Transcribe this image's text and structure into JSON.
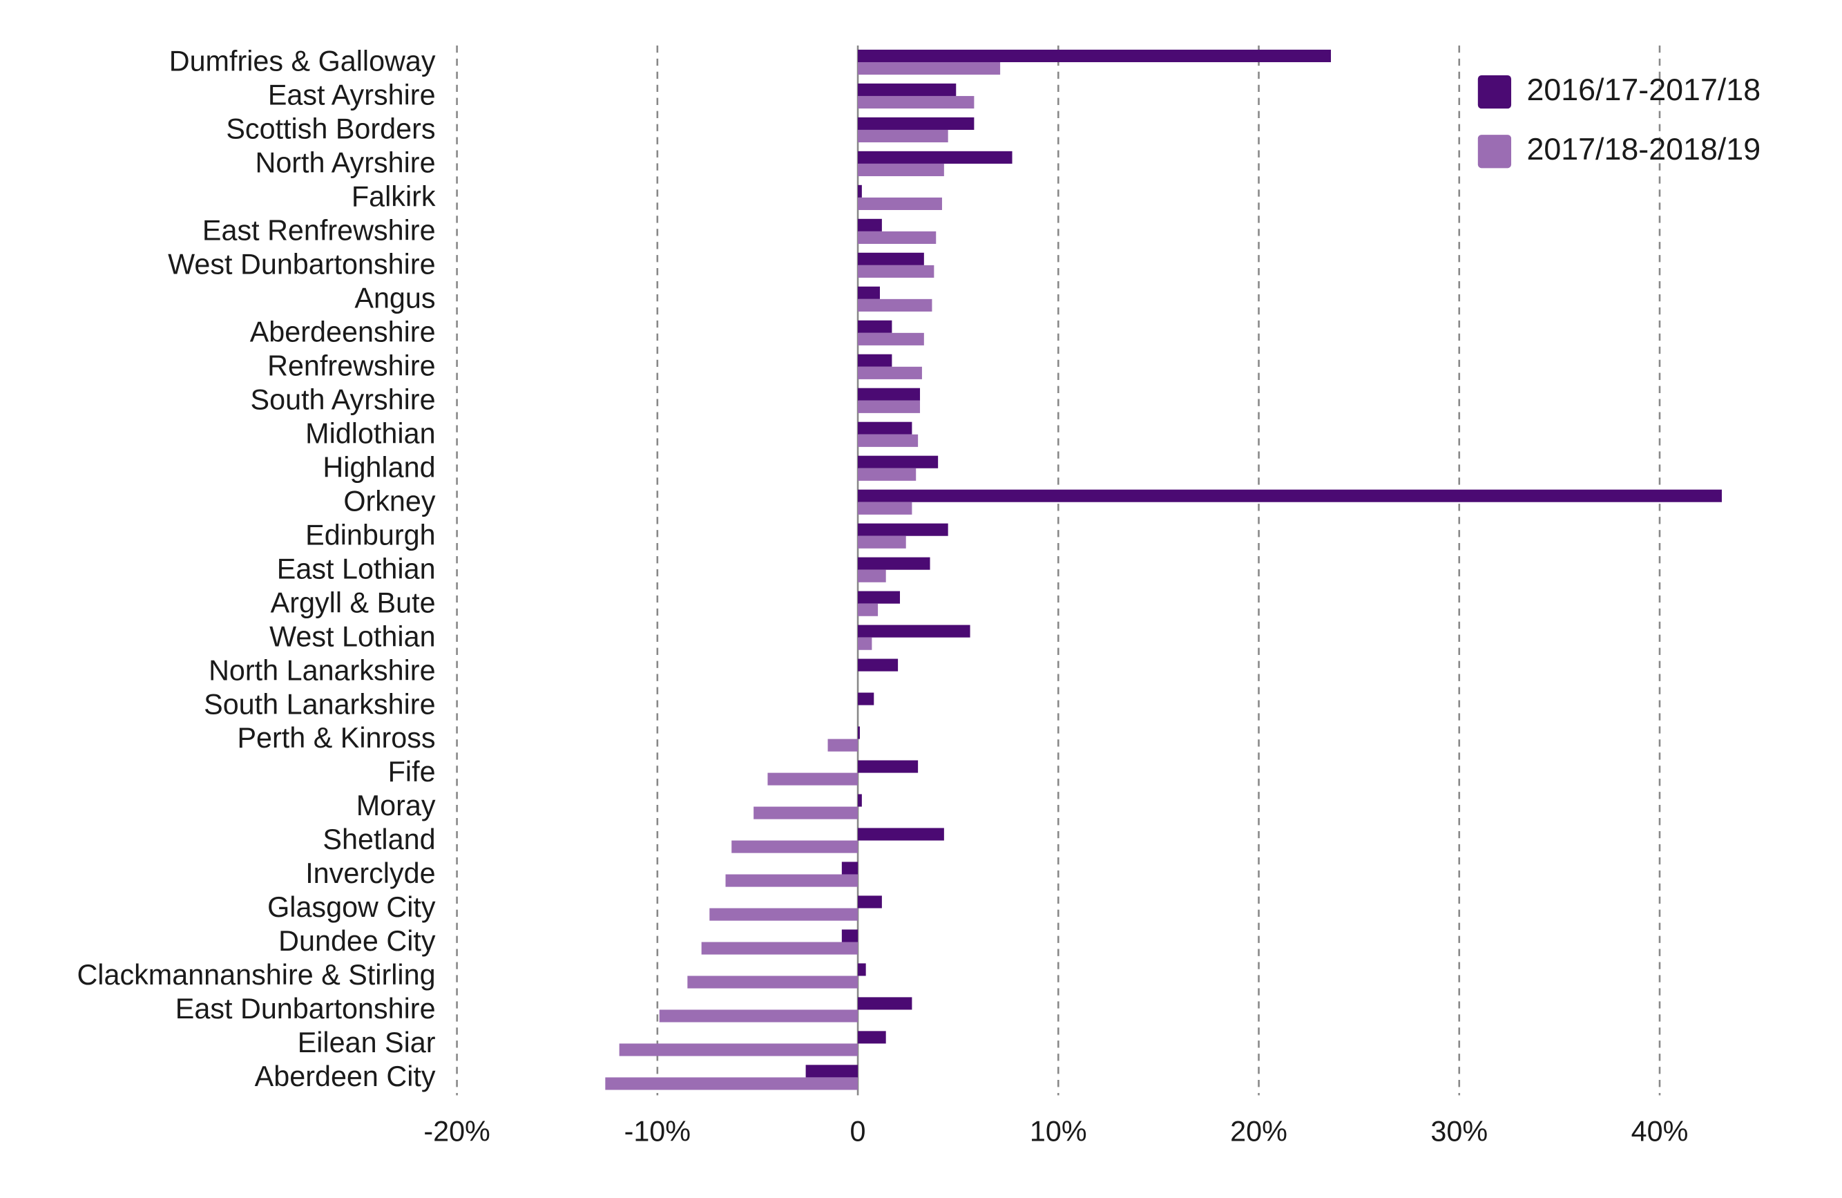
{
  "chart_data": {
    "type": "hbar",
    "categories": [
      "Dumfries & Galloway",
      "East Ayrshire",
      "Scottish Borders",
      "North Ayrshire",
      "Falkirk",
      "East Renfrewshire",
      "West Dunbartonshire",
      "Angus",
      "Aberdeenshire",
      "Renfrewshire",
      "South Ayrshire",
      "Midlothian",
      "Highland",
      "Orkney",
      "Edinburgh",
      "East Lothian",
      "Argyll & Bute",
      "West Lothian",
      "North Lanarkshire",
      "South Lanarkshire",
      "Perth & Kinross",
      "Fife",
      "Moray",
      "Shetland",
      "Inverclyde",
      "Glasgow City",
      "Dundee City",
      "Clackmannanshire & Stirling",
      "East Dunbartonshire",
      "Eilean Siar",
      "Aberdeen City"
    ],
    "series": [
      {
        "name": "2016/17-2017/18",
        "color": "#4b0a73",
        "values": [
          23.6,
          4.9,
          5.8,
          7.7,
          0.2,
          1.2,
          3.3,
          1.1,
          1.7,
          1.7,
          3.1,
          2.7,
          4.0,
          43.1,
          4.5,
          3.6,
          2.1,
          5.6,
          2.0,
          0.8,
          0.1,
          3.0,
          0.2,
          4.3,
          -0.8,
          1.2,
          -0.8,
          0.4,
          2.7,
          1.4,
          -2.6
        ]
      },
      {
        "name": "2017/18-2018/19",
        "color": "#9b6db3",
        "values": [
          7.1,
          5.8,
          4.5,
          4.3,
          4.2,
          3.9,
          3.8,
          3.7,
          3.3,
          3.2,
          3.1,
          3.0,
          2.9,
          2.7,
          2.4,
          1.4,
          1.0,
          0.7,
          0,
          0,
          -1.5,
          -4.5,
          -5.2,
          -6.3,
          -6.6,
          -7.4,
          -7.8,
          -8.5,
          -9.9,
          -11.9,
          -12.6
        ]
      }
    ],
    "xlim": [
      -20,
      45
    ],
    "xticks": [
      {
        "value": -20,
        "label": "-20%"
      },
      {
        "value": -10,
        "label": "-10%"
      },
      0,
      {
        "value": 10,
        "label": "10%"
      },
      {
        "value": 20,
        "label": "20%"
      },
      {
        "value": 30,
        "label": "30%"
      },
      {
        "value": 40,
        "label": "40%"
      }
    ],
    "grid": true,
    "legend": "top-right"
  }
}
